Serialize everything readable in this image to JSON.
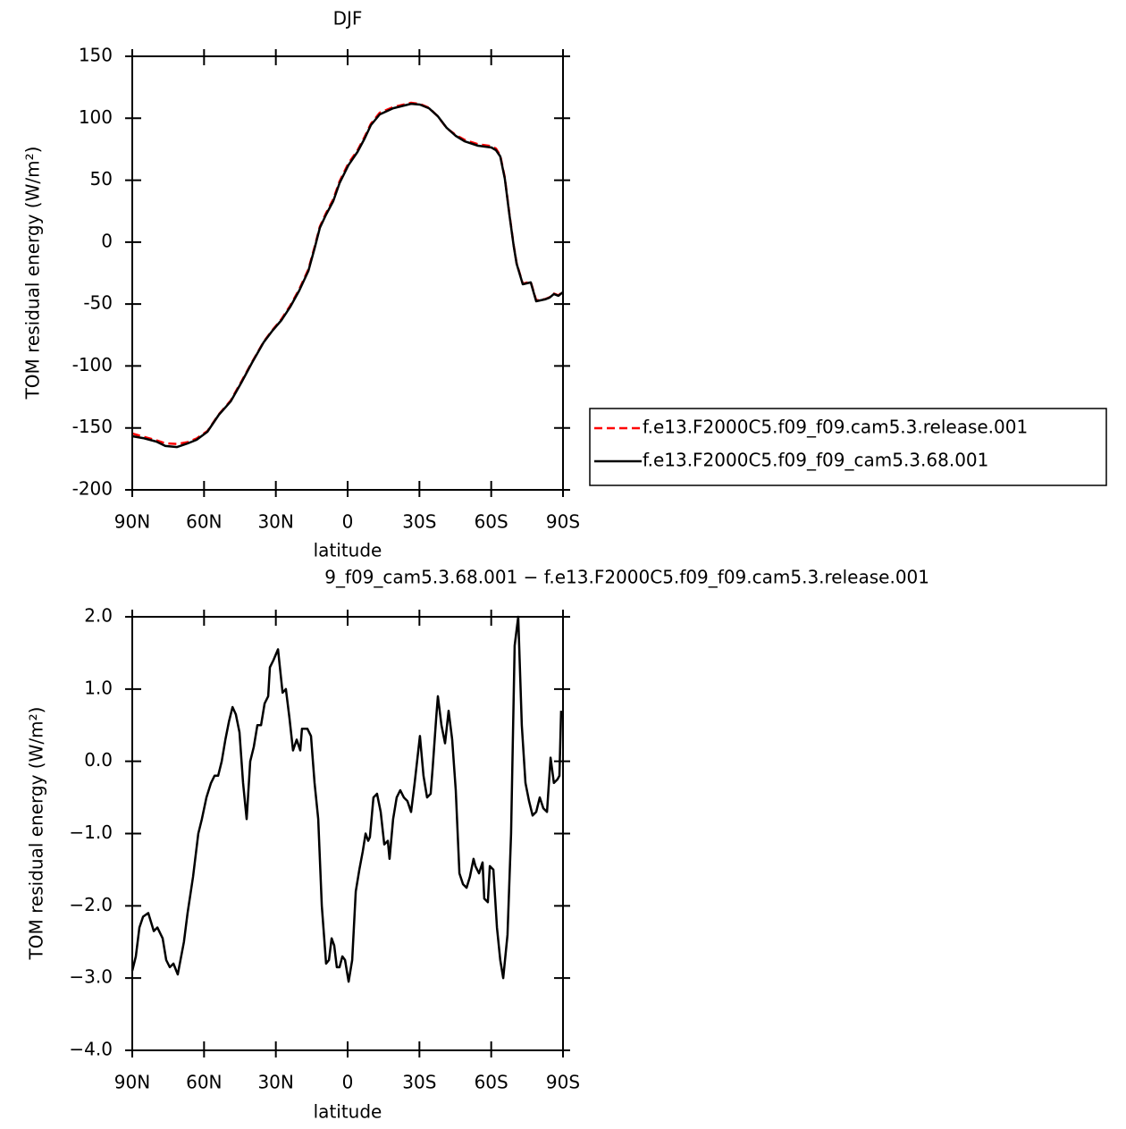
{
  "chart_data": [
    {
      "type": "line",
      "title": "DJF",
      "xlabel": "latitude",
      "ylabel": "TOM residual energy (W/m²)",
      "x": [
        90.0,
        85.5,
        79.9,
        76.2,
        71.3,
        66.8,
        63.1,
        58.6,
        53.8,
        48.9,
        44.4,
        40.0,
        35.1,
        31.4,
        27.6,
        23.9,
        20.2,
        16.4,
        13.8,
        11.6,
        9.0,
        6.0,
        3.4,
        -0.3,
        -4.1,
        -7.1,
        -9.7,
        -13.4,
        -19.0,
        -26.5,
        -30.2,
        -34.0,
        -37.7,
        -41.4,
        -45.2,
        -48.9,
        -54.5,
        -60.1,
        -62.0,
        -63.8,
        -65.7,
        -67.6,
        -69.4,
        -70.6,
        -73.2,
        -76.5,
        -78.8,
        -82.5,
        -84.4,
        -86.2,
        -88.1,
        -90.0
      ],
      "series": [
        {
          "name": "f.e13.F2000C5.f09_f09.cam5.3.release.001",
          "color": "#ff0000",
          "dash": true,
          "values": [
            -154.5,
            -157.0,
            -160.0,
            -162.5,
            -163.0,
            -161.5,
            -158.5,
            -152.5,
            -139.0,
            -128.0,
            -112.5,
            -97.0,
            -80.5,
            -71.0,
            -62.0,
            -51.0,
            -38.0,
            -22.0,
            -4.0,
            12.5,
            23.5,
            34.5,
            49.0,
            63.5,
            74.0,
            85.0,
            95.5,
            104.5,
            109.0,
            112.5,
            111.5,
            108.5,
            101.5,
            92.0,
            86.5,
            82.5,
            79.0,
            77.5,
            75.5,
            70.0,
            52.0,
            23.0,
            -2.5,
            -17.0,
            -33.5,
            -32.0,
            -47.0,
            -46.0,
            -44.5,
            -41.5,
            -43.0,
            -40.0
          ]
        },
        {
          "name": "f.e13.F2000C5.f09_f09_cam5.3.68.001",
          "color": "#000000",
          "dash": false,
          "values": [
            -156.7,
            -158.2,
            -161.0,
            -164.6,
            -165.4,
            -162.5,
            -159.6,
            -153.1,
            -139.4,
            -128.6,
            -113.4,
            -97.5,
            -80.9,
            -71.5,
            -62.9,
            -52.0,
            -39.1,
            -23.2,
            -5.1,
            11.5,
            22.3,
            33.1,
            47.5,
            62.0,
            72.8,
            83.6,
            94.4,
            103.1,
            108.1,
            111.7,
            111.0,
            108.1,
            101.6,
            92.2,
            85.8,
            81.4,
            77.8,
            76.4,
            74.2,
            69.2,
            51.2,
            22.3,
            -3.0,
            -17.4,
            -34.0,
            -32.5,
            -47.7,
            -46.2,
            -44.8,
            -41.9,
            -43.3,
            -40.4
          ]
        }
      ],
      "xlim": [
        90,
        -90
      ],
      "xticks": [
        {
          "value": 90,
          "label": "90N"
        },
        {
          "value": 60,
          "label": "60N"
        },
        {
          "value": 30,
          "label": "30N"
        },
        0,
        {
          "value": -30,
          "label": "30S"
        },
        {
          "value": -60,
          "label": "60S"
        },
        {
          "value": -90,
          "label": "90S"
        }
      ],
      "ylim": [
        -200,
        150
      ],
      "yticks": [
        -200,
        -150,
        -100,
        -50,
        0,
        50,
        100,
        150
      ],
      "legend": "right"
    },
    {
      "type": "line",
      "title": "9_f09_cam5.3.68.001 − f.e13.F2000C5.f09_f09.cam5.3.release.001",
      "xlabel": "latitude",
      "ylabel": "TOM residual energy (W/m²)",
      "color": "#000000",
      "x": [
        90.0,
        88.5,
        87.0,
        85.5,
        83.3,
        81.0,
        79.5,
        77.3,
        75.8,
        74.3,
        72.8,
        71.0,
        68.4,
        66.9,
        64.6,
        62.4,
        60.9,
        59.0,
        57.1,
        55.6,
        54.1,
        52.6,
        51.1,
        49.6,
        48.1,
        46.7,
        45.2,
        43.7,
        42.2,
        40.7,
        39.2,
        37.7,
        36.2,
        34.7,
        33.2,
        32.5,
        31.0,
        29.1,
        27.2,
        25.8,
        24.3,
        22.8,
        21.3,
        19.8,
        19.1,
        16.8,
        15.3,
        13.8,
        12.3,
        10.8,
        9.0,
        7.8,
        6.7,
        5.6,
        4.5,
        3.4,
        2.2,
        1.1,
        -0.4,
        -1.9,
        -3.4,
        -4.9,
        -6.3,
        -7.5,
        -8.6,
        -9.3,
        -10.8,
        -12.3,
        -13.8,
        -15.3,
        -16.8,
        -17.5,
        -19.0,
        -20.5,
        -22.0,
        -23.5,
        -25.0,
        -26.5,
        -28.0,
        -30.2,
        -31.7,
        -33.2,
        -34.7,
        -35.5,
        -37.0,
        -37.7,
        -39.2,
        -40.7,
        -42.2,
        -43.7,
        -45.2,
        -46.7,
        -48.2,
        -49.7,
        -51.1,
        -52.6,
        -53.4,
        -54.9,
        -56.4,
        -57.1,
        -58.6,
        -59.4,
        -60.9,
        -62.4,
        -63.8,
        -65.0,
        -66.8,
        -68.3,
        -69.8,
        -71.3,
        -72.8,
        -74.3,
        -75.8,
        -77.3,
        -78.8,
        -80.3,
        -81.8,
        -83.3,
        -84.8,
        -86.2,
        -87.7,
        -88.5,
        -89.2
      ],
      "values": [
        -2.9,
        -2.7,
        -2.3,
        -2.15,
        -2.1,
        -2.35,
        -2.3,
        -2.45,
        -2.75,
        -2.85,
        -2.8,
        -2.95,
        -2.5,
        -2.1,
        -1.6,
        -1.0,
        -0.8,
        -0.5,
        -0.3,
        -0.2,
        -0.2,
        0.0,
        0.3,
        0.55,
        0.75,
        0.65,
        0.4,
        -0.3,
        -0.8,
        0.0,
        0.2,
        0.5,
        0.5,
        0.8,
        0.9,
        1.3,
        1.4,
        1.55,
        0.95,
        1.0,
        0.6,
        0.15,
        0.3,
        0.15,
        0.45,
        0.45,
        0.35,
        -0.3,
        -0.8,
        -2.0,
        -2.8,
        -2.75,
        -2.45,
        -2.55,
        -2.85,
        -2.85,
        -2.7,
        -2.75,
        -3.05,
        -2.75,
        -1.8,
        -1.5,
        -1.25,
        -1.0,
        -1.1,
        -1.05,
        -0.5,
        -0.45,
        -0.7,
        -1.15,
        -1.1,
        -1.35,
        -0.8,
        -0.5,
        -0.4,
        -0.5,
        -0.55,
        -0.7,
        -0.3,
        0.35,
        -0.2,
        -0.5,
        -0.45,
        -0.1,
        0.6,
        0.9,
        0.5,
        0.25,
        0.7,
        0.3,
        -0.4,
        -1.55,
        -1.7,
        -1.75,
        -1.6,
        -1.35,
        -1.45,
        -1.55,
        -1.4,
        -1.9,
        -1.95,
        -1.45,
        -1.5,
        -2.3,
        -2.75,
        -3.0,
        -2.4,
        -1.0,
        1.6,
        2.0,
        0.5,
        -0.3,
        -0.55,
        -0.75,
        -0.7,
        -0.5,
        -0.65,
        -0.7,
        0.05,
        -0.3,
        -0.25,
        -0.2,
        0.7
      ],
      "xlim": [
        90,
        -90
      ],
      "xticks": [
        {
          "value": 90,
          "label": "90N"
        },
        {
          "value": 60,
          "label": "60N"
        },
        {
          "value": 30,
          "label": "30N"
        },
        0,
        {
          "value": -30,
          "label": "30S"
        },
        {
          "value": -60,
          "label": "60S"
        },
        {
          "value": -90,
          "label": "90S"
        }
      ],
      "ylim": [
        -4,
        2
      ],
      "yticks": [
        {
          "value": -4,
          "label": "−4.0"
        },
        {
          "value": -3,
          "label": "−3.0"
        },
        {
          "value": -2,
          "label": "−2.0"
        },
        {
          "value": -1,
          "label": "−1.0"
        },
        {
          "value": 0,
          "label": "0.0"
        },
        {
          "value": 1,
          "label": "1.0"
        },
        {
          "value": 2,
          "label": "2.0"
        }
      ]
    }
  ]
}
